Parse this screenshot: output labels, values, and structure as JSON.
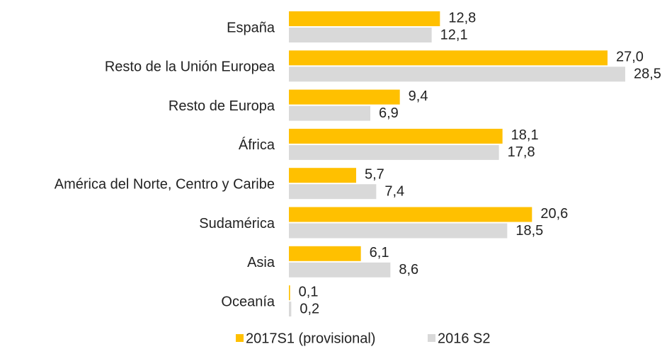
{
  "chart_data": {
    "type": "bar",
    "orientation": "horizontal",
    "categories": [
      "España",
      "Resto de la Unión Europea",
      "Resto de Europa",
      "África",
      "América del Norte, Centro y Caribe",
      "Sudamérica",
      "Asia",
      "Oceanía"
    ],
    "series": [
      {
        "name": "2017S1 (provisional)",
        "color": "#ffc000",
        "values": [
          12.8,
          27.0,
          9.4,
          18.1,
          5.7,
          20.6,
          6.1,
          0.1
        ],
        "value_labels": [
          "12,8",
          "27,0",
          "9,4",
          "18,1",
          "5,7",
          "20,6",
          "6,1",
          "0,1"
        ]
      },
      {
        "name": "2016 S2",
        "color": "#d9d9d9",
        "values": [
          12.1,
          28.5,
          6.9,
          17.8,
          7.4,
          18.5,
          8.6,
          0.2
        ],
        "value_labels": [
          "12,1",
          "28,5",
          "6,9",
          "17,8",
          "7,4",
          "18,5",
          "8,6",
          "0,2"
        ]
      }
    ],
    "xlim": [
      0,
      30
    ],
    "legend": "bottom"
  }
}
